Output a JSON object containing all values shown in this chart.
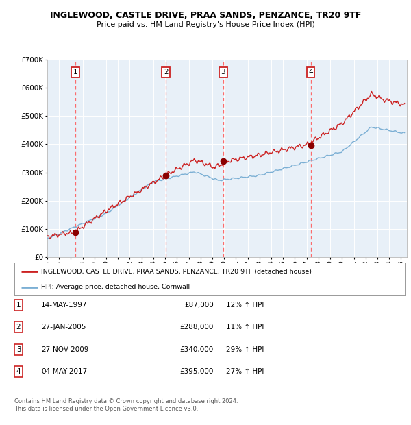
{
  "title": "INGLEWOOD, CASTLE DRIVE, PRAA SANDS, PENZANCE, TR20 9TF",
  "subtitle": "Price paid vs. HM Land Registry's House Price Index (HPI)",
  "legend_line1": "INGLEWOOD, CASTLE DRIVE, PRAA SANDS, PENZANCE, TR20 9TF (detached house)",
  "legend_line2": "HPI: Average price, detached house, Cornwall",
  "purchases": [
    {
      "label": "1",
      "date": "14-MAY-1997",
      "price": 87000,
      "hpi_pct": "12% ↑ HPI",
      "year": 1997.37
    },
    {
      "label": "2",
      "date": "27-JAN-2005",
      "price": 288000,
      "hpi_pct": "11% ↑ HPI",
      "year": 2005.07
    },
    {
      "label": "3",
      "date": "27-NOV-2009",
      "price": 340000,
      "hpi_pct": "29% ↑ HPI",
      "year": 2009.91
    },
    {
      "label": "4",
      "date": "04-MAY-2017",
      "price": 395000,
      "hpi_pct": "27% ↑ HPI",
      "year": 2017.34
    }
  ],
  "footnote1": "Contains HM Land Registry data © Crown copyright and database right 2024.",
  "footnote2": "This data is licensed under the Open Government Licence v3.0.",
  "hpi_color": "#7bafd4",
  "price_color": "#cc2222",
  "marker_color": "#8b0000",
  "vline_color": "#ff5555",
  "plot_bg": "#e8f0f8",
  "grid_color": "#ffffff",
  "ylim": [
    0,
    700000
  ],
  "xlim_start": 1995.0,
  "xlim_end": 2025.5,
  "yticks": [
    0,
    100000,
    200000,
    300000,
    400000,
    500000,
    600000,
    700000
  ],
  "purchase_prices": [
    87000,
    288000,
    340000,
    395000
  ]
}
